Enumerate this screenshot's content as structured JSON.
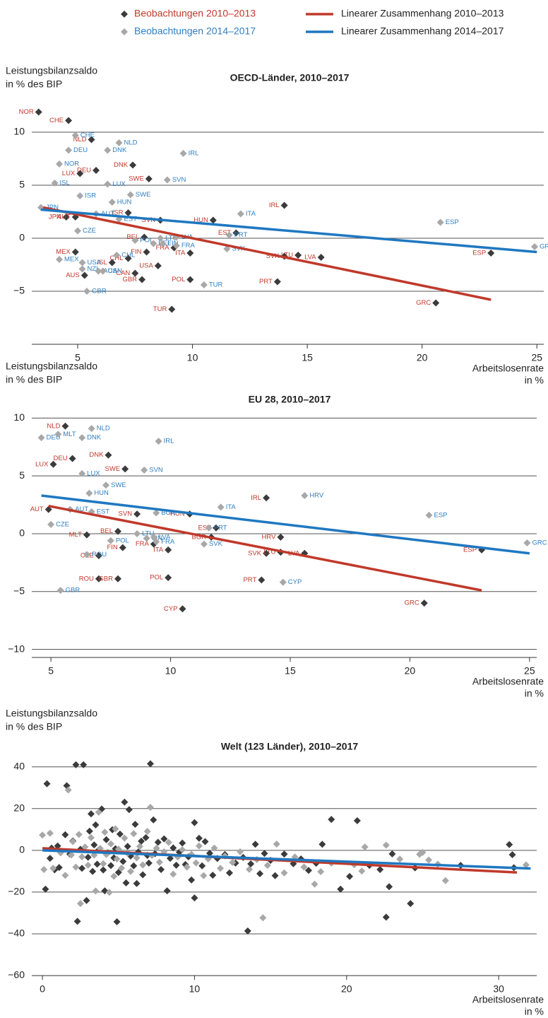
{
  "chart_data": [
    {
      "type": "scatter",
      "title": "OECD-Länder, 2010–2017",
      "ylabel": [
        "Leistungsbilanzsaldo",
        "in % des BIP"
      ],
      "xlabel": [
        "Arbeitslosenrate",
        "in %"
      ],
      "xlim": [
        3,
        25.3
      ],
      "ylim": [
        -10,
        12.8
      ],
      "xticks": [
        5,
        10,
        15,
        20,
        25
      ],
      "yticks": [
        10,
        5,
        0,
        {
          "value": -5,
          "label": "−5"
        }
      ],
      "grid": true,
      "series": [
        {
          "name": "Beobachtungen 2010–2013",
          "mode": "markers",
          "color": "#3b3b3b",
          "label_color": "#c0392b",
          "labels": [
            "NOR",
            "CHE",
            "NLD",
            "DEU",
            "LUX",
            "DNK",
            "SWE",
            "ISR",
            "JPN",
            "AUT",
            "SVN",
            "HUN",
            "IRL",
            "EST",
            "ITA",
            "BEL",
            "FIN",
            "FRA",
            "MEX",
            "CHL",
            "ISL",
            "AUS",
            "USA",
            "CAN",
            "GBR",
            "POL",
            "TUR",
            "SVK",
            "LTU",
            "LVA",
            "PRT",
            "GRC",
            "ESP"
          ],
          "x": [
            3.3,
            4.6,
            5.6,
            5.8,
            5.1,
            7.4,
            8.1,
            7.2,
            4.5,
            4.9,
            8.6,
            10.9,
            14.0,
            11.9,
            9.9,
            7.9,
            8.0,
            9.2,
            4.9,
            7.2,
            6.5,
            5.3,
            8.5,
            7.5,
            7.8,
            9.9,
            9.1,
            14.0,
            14.6,
            15.6,
            13.7,
            20.6,
            23.0
          ],
          "values": [
            11.9,
            11.1,
            9.3,
            6.4,
            6.1,
            6.9,
            5.6,
            2.4,
            2.0,
            2.0,
            1.7,
            1.7,
            3.1,
            0.5,
            -1.4,
            0.1,
            -1.3,
            -0.9,
            -1.3,
            -1.9,
            -2.3,
            -3.5,
            -2.6,
            -3.3,
            -3.9,
            -3.9,
            -6.7,
            -1.7,
            -1.6,
            -1.8,
            -4.1,
            -6.1,
            -1.4
          ]
        },
        {
          "name": "Beobachtungen 2014–2017",
          "mode": "markers",
          "color": "#a8a8a8",
          "label_color": "#2f7fc1",
          "labels": [
            "CHE",
            "NLD",
            "DEU",
            "DNK",
            "IRL",
            "NOR",
            "ISL",
            "LUX",
            "SVN",
            "ISR",
            "SWE",
            "HUN",
            "JPN",
            "AUT",
            "ITA",
            "EST",
            "ESP",
            "CZE",
            "POL",
            "BEL",
            "FIN",
            "LTU",
            "LVA",
            "FRA",
            "PRT",
            "SVK",
            "GRC",
            "MEX",
            "USA",
            "NZL",
            "AUS",
            "CHL",
            "CAN",
            "GBR",
            "TUR"
          ],
          "x": [
            4.9,
            6.8,
            4.6,
            6.3,
            9.6,
            4.2,
            4.0,
            6.3,
            8.9,
            5.1,
            7.3,
            6.5,
            3.4,
            5.8,
            12.1,
            6.8,
            20.8,
            5.0,
            7.5,
            8.3,
            8.7,
            8.6,
            9.3,
            9.3,
            11.6,
            11.5,
            24.9,
            4.2,
            5.2,
            5.2,
            5.9,
            6.7,
            6.1,
            5.4,
            10.5
          ],
          "values": [
            9.7,
            9.0,
            8.3,
            8.3,
            8.0,
            7.0,
            5.2,
            5.1,
            5.5,
            4.0,
            4.1,
            3.4,
            2.9,
            2.3,
            2.3,
            1.8,
            1.5,
            0.7,
            -0.2,
            -0.5,
            -0.5,
            0.0,
            0.1,
            -0.7,
            0.3,
            -1.0,
            -0.8,
            -2.0,
            -2.3,
            -2.9,
            -3.1,
            -1.6,
            -3.1,
            -5.0,
            -4.4
          ]
        },
        {
          "name": "Linearer Zusammenhang 2010–2013",
          "mode": "line",
          "color": "#c0392b",
          "x": [
            3.5,
            23.0
          ],
          "values": [
            2.9,
            -5.8
          ]
        },
        {
          "name": "Linearer Zusammenhang 2014–2017",
          "mode": "line",
          "color": "#1f78c1",
          "x": [
            3.4,
            25.0
          ],
          "values": [
            2.7,
            -1.3
          ]
        }
      ]
    },
    {
      "type": "scatter",
      "title": "EU 28, 2010–2017",
      "ylabel": [
        "Leistungsbilanzsaldo",
        "in % des BIP"
      ],
      "xlabel": [
        "Arbeitslosenrate",
        "in %"
      ],
      "xlim": [
        4.2,
        25.3
      ],
      "ylim": [
        -10.7,
        11
      ],
      "xticks": [
        5,
        10,
        15,
        20,
        25
      ],
      "yticks": [
        10,
        5,
        0,
        {
          "value": -5,
          "label": "−5"
        },
        {
          "value": -10,
          "label": "−10"
        }
      ],
      "grid": true,
      "series": [
        {
          "mode": "markers",
          "color": "#3b3b3b",
          "label_color": "#c0392b",
          "labels": [
            "NLD",
            "DEU",
            "LUX",
            "DNK",
            "SWE",
            "AUT",
            "SVN",
            "HUN",
            "IRL",
            "EST",
            "BGR",
            "PRT",
            "BEL",
            "MLT",
            "FIN",
            "FRA",
            "CZE",
            "ITA",
            "ROU",
            "GBR",
            "POL",
            "CYP",
            "HRV",
            "SVK",
            "LTU",
            "LVA",
            "GRC",
            "ESP"
          ],
          "x": [
            5.6,
            5.9,
            5.1,
            7.4,
            8.1,
            4.9,
            8.6,
            10.8,
            14.0,
            11.9,
            11.7,
            13.8,
            7.8,
            6.5,
            8.0,
            9.3,
            7.0,
            9.9,
            7.0,
            7.8,
            9.9,
            10.5,
            14.6,
            14.0,
            14.6,
            15.6,
            20.6,
            23.0
          ],
          "values": [
            9.3,
            6.5,
            6.0,
            6.8,
            5.6,
            2.1,
            1.7,
            1.7,
            3.1,
            0.5,
            -0.3,
            -4.0,
            0.2,
            -0.1,
            -1.2,
            -0.9,
            -1.9,
            -1.4,
            -3.9,
            -3.9,
            -3.8,
            -6.5,
            -0.3,
            -1.7,
            -1.6,
            -1.7,
            -6.0,
            -1.4
          ]
        },
        {
          "mode": "markers",
          "color": "#a8a8a8",
          "label_color": "#2f7fc1",
          "labels": [
            "NLD",
            "DEU",
            "MLT",
            "DNK",
            "IRL",
            "SVN",
            "LUX",
            "SWE",
            "HUN",
            "HRV",
            "ITA",
            "ESP",
            "AUT",
            "EST",
            "CZE",
            "BGR",
            "PRT",
            "LTU",
            "POL",
            "FIN",
            "LVA",
            "FRA",
            "SVK",
            "ROU",
            "CYP",
            "GBR",
            "GRC"
          ],
          "x": [
            6.7,
            4.6,
            5.3,
            6.3,
            9.5,
            8.9,
            6.3,
            7.3,
            6.6,
            15.6,
            12.1,
            20.8,
            5.8,
            6.7,
            5.0,
            9.4,
            11.6,
            8.6,
            7.5,
            9.0,
            9.3,
            9.4,
            11.4,
            6.5,
            14.7,
            5.4,
            24.9
          ],
          "values": [
            9.1,
            8.3,
            8.6,
            8.3,
            8.0,
            5.5,
            5.2,
            4.2,
            3.5,
            3.3,
            2.3,
            1.6,
            2.1,
            1.9,
            0.8,
            1.8,
            0.5,
            0.0,
            -0.6,
            -0.4,
            -0.3,
            -0.7,
            -0.9,
            -1.8,
            -4.2,
            -4.9,
            -0.8
          ]
        },
        {
          "mode": "line",
          "color": "#c0392b",
          "x": [
            4.9,
            23.0
          ],
          "values": [
            2.4,
            -4.9
          ]
        },
        {
          "mode": "line",
          "color": "#1f78c1",
          "x": [
            4.6,
            25.0
          ],
          "values": [
            3.3,
            -1.7
          ]
        }
      ]
    },
    {
      "type": "scatter",
      "title": "Welt (123 Länder), 2010–2017",
      "ylabel": [
        "Leistungsbilanzsaldo",
        "in % des BIP"
      ],
      "xlabel": [
        "Arbeitslosenrate",
        "in %"
      ],
      "xlim": [
        -0.7,
        32.5
      ],
      "ylim": [
        -60,
        45
      ],
      "xticks": [
        0,
        10,
        20,
        30
      ],
      "yticks": [
        40,
        20,
        0,
        {
          "value": -20,
          "label": "−20"
        },
        {
          "value": -40,
          "label": "−40"
        },
        {
          "value": -60,
          "label": "−60"
        }
      ],
      "grid": true,
      "series": [
        {
          "mode": "markers",
          "color": "#3b3b3b",
          "x": [
            0.3,
            0.2,
            0.5,
            0.6,
            0.8,
            1.0,
            1.1,
            1.2,
            1.5,
            1.6,
            1.8,
            2.0,
            2.2,
            2.3,
            2.5,
            2.6,
            2.7,
            2.9,
            3.0,
            3.1,
            3.2,
            3.3,
            3.4,
            3.5,
            3.6,
            3.7,
            3.9,
            4.0,
            4.1,
            4.2,
            4.3,
            4.5,
            4.6,
            4.7,
            4.8,
            4.9,
            5.0,
            5.1,
            5.3,
            5.4,
            5.5,
            5.6,
            5.7,
            5.8,
            6.0,
            6.1,
            6.2,
            6.3,
            6.5,
            6.6,
            6.8,
            6.9,
            7.1,
            7.0,
            7.3,
            7.4,
            7.6,
            7.8,
            8.0,
            8.2,
            8.4,
            8.6,
            8.8,
            9.0,
            9.2,
            9.4,
            9.6,
            9.8,
            10.0,
            10.0,
            10.3,
            10.5,
            10.7,
            11.0,
            11.2,
            11.5,
            12.0,
            12.3,
            12.7,
            13.2,
            13.5,
            13.7,
            14.0,
            14.3,
            14.6,
            15.0,
            15.3,
            15.9,
            16.5,
            17.0,
            17.5,
            18.0,
            18.4,
            19.0,
            19.6,
            20.2,
            20.7,
            21.5,
            22.2,
            22.6,
            22.8,
            23.0,
            24.2,
            24.5,
            27.5,
            30.7,
            30.9,
            31.0
          ],
          "values": [
            31.9,
            -18.6,
            -3.8,
            1.1,
            -9.3,
            2.1,
            -8.2,
            -0.5,
            7.5,
            31,
            -1.8,
            4.5,
            41,
            -34,
            0.5,
            -8.6,
            41,
            -24,
            -3.3,
            9.2,
            17.5,
            -10.1,
            2.6,
            12.2,
            -6.6,
            0.2,
            19.8,
            -9.4,
            -19.4,
            5.1,
            -1.2,
            -7.3,
            9.9,
            -3.6,
            0.8,
            -34.2,
            -10.6,
            7.8,
            -5.3,
            23.1,
            -15.6,
            1.9,
            19.5,
            -2.7,
            -7.4,
            12.5,
            -15.9,
            -0.8,
            4.4,
            -11.7,
            6.1,
            -2.4,
            41.5,
            -6.1,
            14.6,
            -1.6,
            3.9,
            -9.2,
            5.5,
            -19.4,
            -3.8,
            1.2,
            -7.1,
            -0.9,
            3.5,
            -6.8,
            -3.1,
            -14.2,
            -22.8,
            13.3,
            5.8,
            -7.4,
            4.2,
            -1.4,
            -11.9,
            -3.9,
            -2.0,
            -10.8,
            -6.1,
            -3.4,
            -38.6,
            -6.5,
            2.9,
            -11.2,
            -1.5,
            -4.8,
            -12.1,
            -1.8,
            -6.4,
            -4.1,
            -9.6,
            -6.2,
            2.9,
            14.8,
            -18.6,
            -12.5,
            14.2,
            -7.2,
            -9.2,
            -32,
            -17.4,
            -1.7,
            -25.5,
            -8.4,
            -7.2,
            2.8,
            -2.1,
            -8.3
          ]
        },
        {
          "mode": "markers",
          "color": "#a8a8a8",
          "x": [
            0,
            0.1,
            0.5,
            0.7,
            1.2,
            1.5,
            1.7,
            1.9,
            2.0,
            2.2,
            2.4,
            2.5,
            2.6,
            2.8,
            3.0,
            3.2,
            3.4,
            3.5,
            3.7,
            3.8,
            4.0,
            4.1,
            4.2,
            4.4,
            4.5,
            4.7,
            4.8,
            4.9,
            5.0,
            5.2,
            5.4,
            5.6,
            5.8,
            6.0,
            6.2,
            6.4,
            6.6,
            6.9,
            7.1,
            7.2,
            7.5,
            7.7,
            8.0,
            8.3,
            8.6,
            8.9,
            9.2,
            9.5,
            9.8,
            10.1,
            10.3,
            10.6,
            10.9,
            11.3,
            11.7,
            12.0,
            12.5,
            13.0,
            13.6,
            14.1,
            14.5,
            14.8,
            15.4,
            15.9,
            16.6,
            17.2,
            17.9,
            18.3,
            19.0,
            20.5,
            21.0,
            21.2,
            22.6,
            23.5,
            24.8,
            25.0,
            25.4,
            26.0,
            26.5,
            31.8
          ],
          "values": [
            7.3,
            -9.2,
            8.2,
            -8.6,
            -1.2,
            -12,
            28.9,
            -2.2,
            4.2,
            -8.0,
            7.6,
            -25.5,
            -3.1,
            1.6,
            -7.1,
            6.1,
            -2.3,
            -19.5,
            18.3,
            0.9,
            -6.4,
            8.7,
            -2.0,
            -20.1,
            3.1,
            -12.4,
            10.3,
            -4.1,
            0.6,
            -8.5,
            5.9,
            -1.4,
            -10.1,
            8.0,
            -3.6,
            1.9,
            -7.0,
            9.1,
            20.6,
            -2.4,
            1.0,
            -5.7,
            -0.7,
            3.8,
            -11.4,
            -3.2,
            0.3,
            -8.0,
            -1.9,
            -6.0,
            2.1,
            -12.1,
            -4.1,
            1.1,
            -8.6,
            -2.7,
            -5.8,
            -0.7,
            -9.1,
            -4.4,
            -32.3,
            -7.2,
            3.0,
            -10.8,
            -3.2,
            -8.0,
            -16.2,
            -10.2,
            -6.1,
            -6.9,
            -9.9,
            1.6,
            2.5,
            -4.2,
            -1.9,
            -1.0,
            -4.6,
            -6.6,
            -14.5,
            -7.0
          ]
        },
        {
          "mode": "line",
          "color": "#c0392b",
          "x": [
            0,
            31.2
          ],
          "values": [
            1,
            -10.6
          ]
        },
        {
          "mode": "line",
          "color": "#1f78c1",
          "x": [
            0,
            32.1
          ],
          "values": [
            0,
            -8.7
          ]
        }
      ]
    }
  ]
}
